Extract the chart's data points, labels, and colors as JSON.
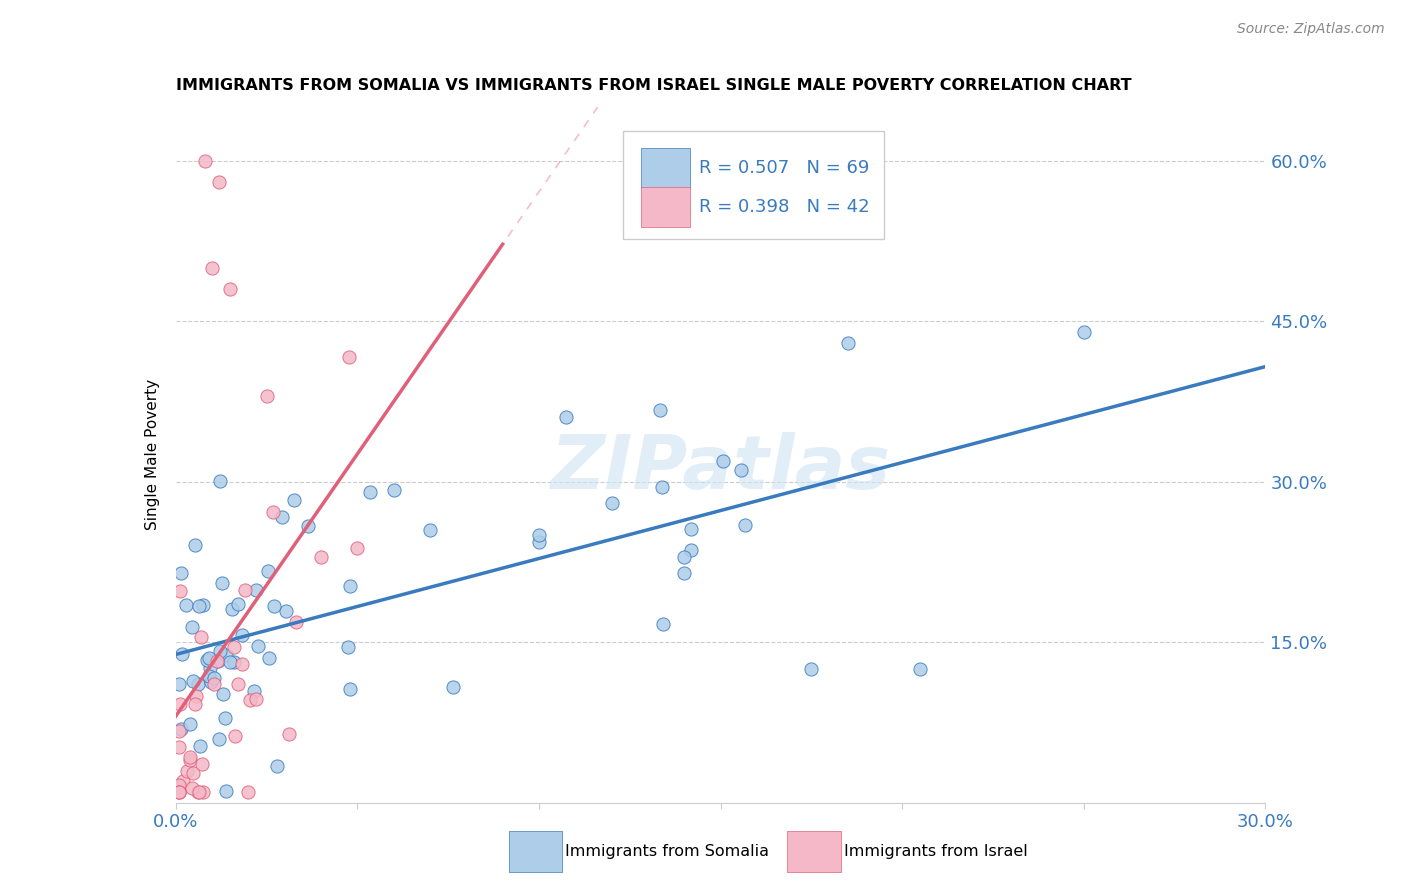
{
  "title": "IMMIGRANTS FROM SOMALIA VS IMMIGRANTS FROM ISRAEL SINGLE MALE POVERTY CORRELATION CHART",
  "source": "Source: ZipAtlas.com",
  "ylabel": "Single Male Poverty",
  "xlim": [
    0.0,
    0.3
  ],
  "ylim": [
    0.0,
    0.65
  ],
  "x_ticks": [
    0.0,
    0.05,
    0.1,
    0.15,
    0.2,
    0.25,
    0.3
  ],
  "x_tick_labels": [
    "0.0%",
    "",
    "",
    "",
    "",
    "",
    "30.0%"
  ],
  "y_ticks": [
    0.0,
    0.15,
    0.3,
    0.45,
    0.6
  ],
  "y_tick_labels_right": [
    "",
    "15.0%",
    "30.0%",
    "45.0%",
    "60.0%"
  ],
  "color_somalia": "#aecde8",
  "color_israel": "#f4b8c8",
  "color_somalia_line": "#3a7bbf",
  "color_israel_line": "#e0607a",
  "watermark": "ZIPatlas",
  "legend_text_color": "#3a7bbf",
  "legend_label_color": "#3a7bbf"
}
